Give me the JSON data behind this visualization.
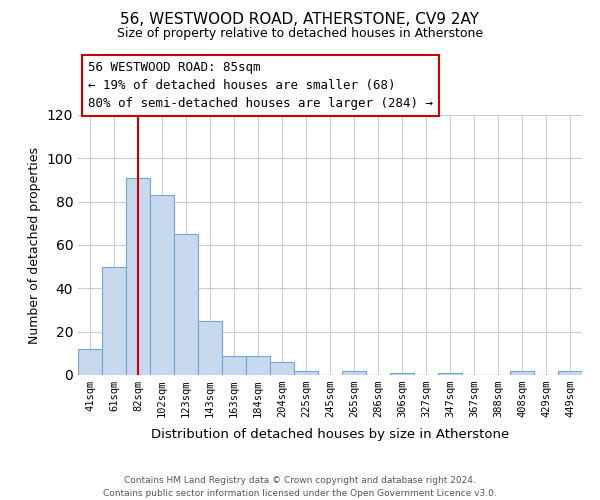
{
  "title": "56, WESTWOOD ROAD, ATHERSTONE, CV9 2AY",
  "subtitle": "Size of property relative to detached houses in Atherstone",
  "xlabel": "Distribution of detached houses by size in Atherstone",
  "ylabel": "Number of detached properties",
  "bin_labels": [
    "41sqm",
    "61sqm",
    "82sqm",
    "102sqm",
    "123sqm",
    "143sqm",
    "163sqm",
    "184sqm",
    "204sqm",
    "225sqm",
    "245sqm",
    "265sqm",
    "286sqm",
    "306sqm",
    "327sqm",
    "347sqm",
    "367sqm",
    "388sqm",
    "408sqm",
    "429sqm",
    "449sqm"
  ],
  "bar_values": [
    12,
    50,
    91,
    83,
    65,
    25,
    9,
    9,
    6,
    2,
    0,
    2,
    0,
    1,
    0,
    1,
    0,
    0,
    2,
    0,
    2
  ],
  "bar_color": "#c8d8ee",
  "bar_edge_color": "#6fa8d6",
  "red_line_bar_index": 2,
  "highlight_line_color": "#cc0000",
  "ylim": [
    0,
    120
  ],
  "yticks": [
    0,
    20,
    40,
    60,
    80,
    100,
    120
  ],
  "annotation_title": "56 WESTWOOD ROAD: 85sqm",
  "annotation_line1": "← 19% of detached houses are smaller (68)",
  "annotation_line2": "80% of semi-detached houses are larger (284) →",
  "annotation_box_color": "#ffffff",
  "annotation_box_edge": "#cc0000",
  "footer_line1": "Contains HM Land Registry data © Crown copyright and database right 2024.",
  "footer_line2": "Contains public sector information licensed under the Open Government Licence v3.0.",
  "background_color": "#ffffff",
  "grid_color": "#cccccc"
}
